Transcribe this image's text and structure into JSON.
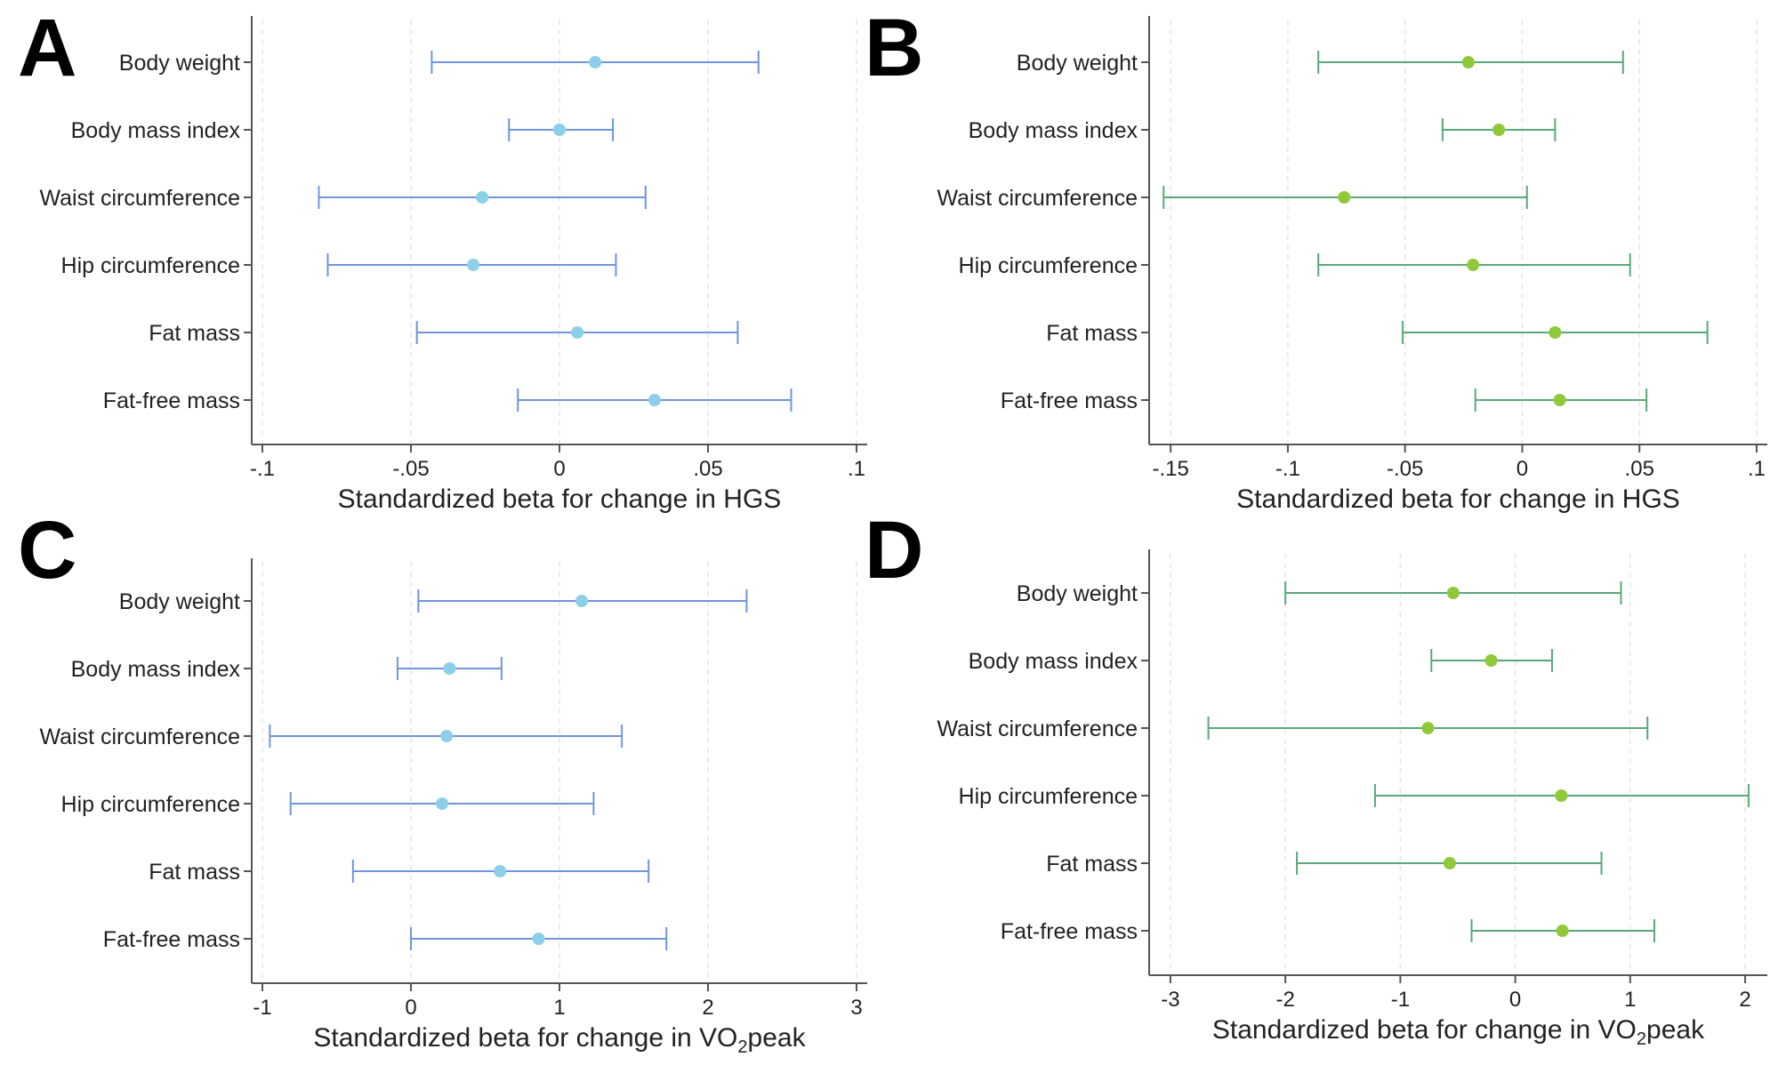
{
  "chart_data": [
    {
      "panel": "A",
      "type": "scatter",
      "plot": "forest",
      "categories": [
        "Body weight",
        "Body mass index",
        "Waist circumference",
        "Hip circumference",
        "Fat mass",
        "Fat-free mass"
      ],
      "estimate": [
        0.012,
        0.0,
        -0.026,
        -0.029,
        0.006,
        0.032
      ],
      "ci_low": [
        -0.043,
        -0.017,
        -0.081,
        -0.078,
        -0.048,
        -0.014
      ],
      "ci_high": [
        0.067,
        0.018,
        0.029,
        0.019,
        0.06,
        0.078
      ],
      "xlim": [
        -0.1,
        0.1
      ],
      "xticks": [
        -0.1,
        -0.05,
        0,
        0.05,
        0.1
      ],
      "xtick_labels": [
        "-.1",
        "-.05",
        "0",
        ".05",
        ".1"
      ],
      "xlabel": "Standardized beta for change in HGS",
      "xlabel_sub": "",
      "xlabel_tail": "",
      "line_color": "#6f95dd",
      "marker_color": "#8ccfe9"
    },
    {
      "panel": "B",
      "type": "scatter",
      "plot": "forest",
      "categories": [
        "Body weight",
        "Body mass index",
        "Waist circumference",
        "Hip circumference",
        "Fat mass",
        "Fat-free mass"
      ],
      "estimate": [
        -0.023,
        -0.01,
        -0.076,
        -0.021,
        0.014,
        0.016
      ],
      "ci_low": [
        -0.087,
        -0.034,
        -0.153,
        -0.087,
        -0.051,
        -0.02
      ],
      "ci_high": [
        0.043,
        0.014,
        0.002,
        0.046,
        0.079,
        0.053
      ],
      "xlim": [
        -0.155,
        0.1
      ],
      "xticks": [
        -0.15,
        -0.1,
        -0.05,
        0,
        0.05,
        0.1
      ],
      "xtick_labels": [
        "-.15",
        "-.1",
        "-.05",
        "0",
        ".05",
        ".1"
      ],
      "xlabel": "Standardized beta for change in HGS",
      "xlabel_sub": "",
      "xlabel_tail": "",
      "line_color": "#5aa87a",
      "marker_color": "#8fc93a"
    },
    {
      "panel": "C",
      "type": "scatter",
      "plot": "forest",
      "categories": [
        "Body weight",
        "Body mass index",
        "Waist circumference",
        "Hip circumference",
        "Fat mass",
        "Fat-free mass"
      ],
      "estimate": [
        1.15,
        0.26,
        0.24,
        0.21,
        0.6,
        0.86
      ],
      "ci_low": [
        0.05,
        -0.09,
        -0.95,
        -0.81,
        -0.39,
        0.0
      ],
      "ci_high": [
        2.26,
        0.61,
        1.42,
        1.23,
        1.6,
        1.72
      ],
      "xlim": [
        -1,
        3
      ],
      "xticks": [
        -1,
        0,
        1,
        2,
        3
      ],
      "xtick_labels": [
        "-1",
        "0",
        "1",
        "2",
        "3"
      ],
      "xlabel": "Standardized beta for change in VO",
      "xlabel_sub": "2",
      "xlabel_tail": "peak",
      "line_color": "#6f95dd",
      "marker_color": "#8ccfe9"
    },
    {
      "panel": "D",
      "type": "scatter",
      "plot": "forest",
      "categories": [
        "Body weight",
        "Body mass index",
        "Waist circumference",
        "Hip circumference",
        "Fat mass",
        "Fat-free mass"
      ],
      "estimate": [
        -0.54,
        -0.21,
        -0.76,
        0.4,
        -0.57,
        0.41
      ],
      "ci_low": [
        -2.0,
        -0.73,
        -2.67,
        -1.22,
        -1.9,
        -0.38
      ],
      "ci_high": [
        0.92,
        0.32,
        1.15,
        2.03,
        0.75,
        1.21
      ],
      "xlim": [
        -3.1,
        2.1
      ],
      "xticks": [
        -3,
        -2,
        -1,
        0,
        1,
        2
      ],
      "xtick_labels": [
        "-3",
        "-2",
        "-1",
        "0",
        "1",
        "2"
      ],
      "xlabel": "Standardized beta for change in VO",
      "xlabel_sub": "2",
      "xlabel_tail": "peak",
      "line_color": "#5aa87a",
      "marker_color": "#8fc93a"
    }
  ]
}
